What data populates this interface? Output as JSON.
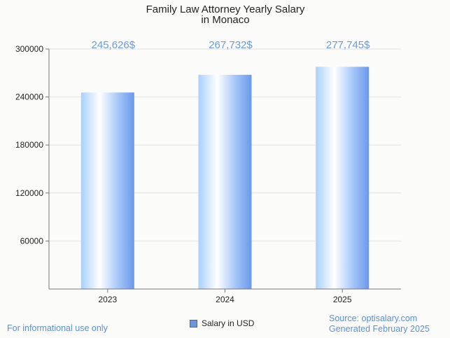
{
  "chart_data": {
    "type": "bar",
    "title": "Family Law Attorney Yearly Salary",
    "subtitle": "in Monaco",
    "categories": [
      "2023",
      "2024",
      "2025"
    ],
    "values": [
      245626,
      267732,
      277745
    ],
    "value_labels": [
      "245,626$",
      "267,732$",
      "277,745$"
    ],
    "yticks": [
      "60000",
      "120000",
      "180000",
      "240000",
      "300000"
    ],
    "ylim": [
      0,
      300000
    ],
    "legend": "Salary in USD",
    "xlabel": "",
    "ylabel": ""
  },
  "footer": {
    "left": "For informational use only",
    "source": "Source: optisalary.com",
    "generated": "Generated February 2025"
  },
  "colors": {
    "bar_light": "#ffffff",
    "bar_mid": "#a9d0fb",
    "bar_dark": "#6c98ea",
    "label": "#6b9ad8",
    "grid": "#e2e2e2",
    "axis": "#777777"
  }
}
